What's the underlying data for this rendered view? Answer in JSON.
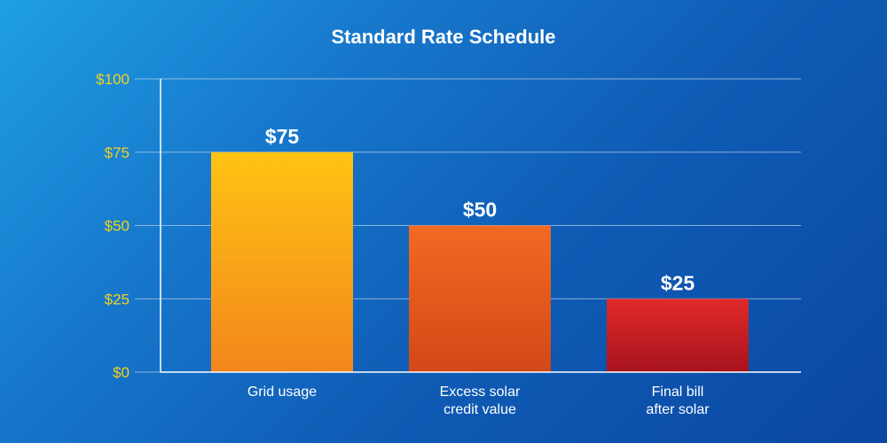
{
  "chart_data": {
    "type": "bar",
    "title": "Standard Rate Schedule",
    "categories": [
      [
        "Grid usage"
      ],
      [
        "Excess solar",
        "credit value"
      ],
      [
        "Final bill",
        "after solar"
      ]
    ],
    "values": [
      75,
      50,
      25
    ],
    "value_labels": [
      "$75",
      "$50",
      "$25"
    ],
    "yticks": [
      0,
      25,
      50,
      75,
      100
    ],
    "ytick_labels": [
      "$0",
      "$25",
      "$50",
      "$75",
      "$100"
    ],
    "ylim": [
      0,
      100
    ],
    "grid": true,
    "colors": {
      "bar_gradients": [
        [
          "#ffc313",
          "#f2861c"
        ],
        [
          "#f26a23",
          "#d24817"
        ],
        [
          "#e12a2a",
          "#a7131d"
        ]
      ],
      "tick_label": "#f2d21b",
      "text": "#ffffff",
      "grid": "#a9c8ea",
      "axis": "#ffffff"
    }
  }
}
